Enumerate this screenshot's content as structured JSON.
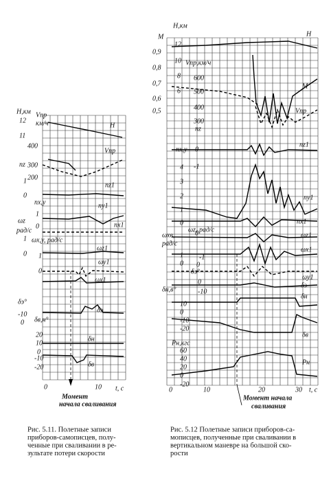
{
  "fig_5_11": {
    "labels": [
      "H,км",
      "Vпр",
      "км/ч",
      "12",
      "11",
      "400",
      "300",
      "200",
      "H",
      "Vпр",
      "nz",
      "1",
      "0",
      "nz1",
      "nx,y",
      "ny1",
      "1",
      "0",
      "nx1",
      "ωz",
      "рад/с",
      "ωx,y, рад/с",
      "1",
      "0",
      "ωz1",
      "1",
      "0",
      "ωy1",
      "ωx1",
      "δэ°",
      "-10",
      "0",
      "δв,н°",
      "δэ",
      "20",
      "10",
      "0",
      "δн",
      "-10",
      "-20",
      "δв",
      "0",
      "10",
      "t, c"
    ],
    "annotation": [
      "Момент",
      "начала сваливания"
    ],
    "caption": [
      "Рис. 5.11. Полетные записи",
      "приборов-самописцев, полу-",
      "ченные при сваливании в ре-",
      "зультате потери скорости"
    ]
  },
  "fig_5_12": {
    "labels": [
      "H,км",
      "M",
      "0,9",
      "0,8",
      "0,7",
      "0,6",
      "0,5",
      "12",
      "10",
      "8",
      "6",
      "Vпр,км/ч",
      "600",
      "500",
      "400",
      "300",
      "nz",
      "H",
      "M",
      "Vпр",
      "nx,y",
      "0",
      "nz1",
      "4",
      "-1",
      "3",
      "2",
      "1",
      "0",
      "ny1",
      "nx1",
      "ωxв,",
      "рад/с",
      "ωz, рад/с",
      "0",
      "ωz1",
      "1",
      "0",
      "-1",
      "ωx1",
      "δэ°",
      "0",
      "ωy1",
      "δн,в°",
      "0",
      "-10",
      "δэ",
      "δн",
      "10",
      "0",
      "-10",
      "-20",
      "δв",
      "Pн,кгс",
      "60",
      "40",
      "20",
      "0",
      "-20",
      "Pн",
      "0",
      "10",
      "20",
      "30",
      "t, c"
    ],
    "annotation": [
      "Момент начала",
      "сваливания"
    ],
    "caption": [
      "Рис. 5.12 Полетные записи приборов-са-",
      "мописцев, полученные при сваливании в",
      "вертикальном маневре на большой ско-",
      "рости"
    ]
  }
}
